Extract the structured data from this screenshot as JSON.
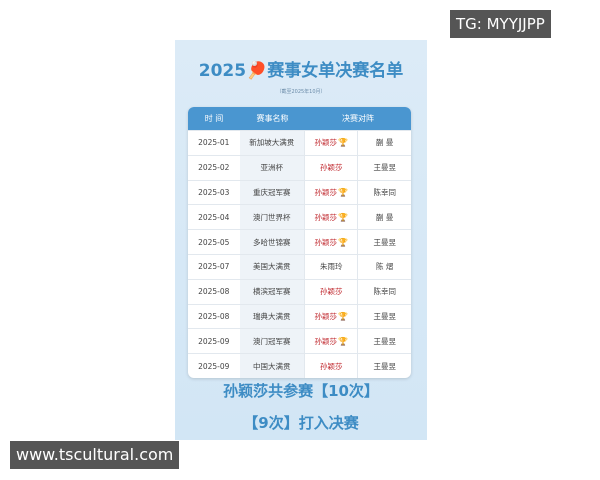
{
  "watermark_top": "TG: MYYJJPP",
  "watermark_bottom": "www.tscultural.com",
  "title_year": "2025",
  "title_text": "赛事女单决赛名单",
  "subtitle": "（截至2025年10月）",
  "headers": [
    "时 间",
    "赛事名称",
    "决赛对阵"
  ],
  "rows": [
    {
      "date": "2025-01",
      "event": "新加坡大满贯",
      "p1": "孙颖莎",
      "p2": "蒯 曼",
      "trophy": true,
      "red": true
    },
    {
      "date": "2025-02",
      "event": "亚洲杯",
      "p1": "孙颖莎",
      "p2": "王曼昱",
      "trophy": false,
      "red": true
    },
    {
      "date": "2025-03",
      "event": "重庆冠军赛",
      "p1": "孙颖莎",
      "p2": "陈幸同",
      "trophy": true,
      "red": true
    },
    {
      "date": "2025-04",
      "event": "澳门世界杯",
      "p1": "孙颖莎",
      "p2": "蒯 曼",
      "trophy": true,
      "red": true
    },
    {
      "date": "2025-05",
      "event": "多哈世锦赛",
      "p1": "孙颖莎",
      "p2": "王曼昱",
      "trophy": true,
      "red": true
    },
    {
      "date": "2025-07",
      "event": "美国大满贯",
      "p1": "朱雨玲",
      "p2": "陈 熠",
      "trophy": false,
      "red": false
    },
    {
      "date": "2025-08",
      "event": "横滨冠军赛",
      "p1": "孙颖莎",
      "p2": "陈幸同",
      "trophy": false,
      "red": true
    },
    {
      "date": "2025-08",
      "event": "瑞典大满贯",
      "p1": "孙颖莎",
      "p2": "王曼昱",
      "trophy": true,
      "red": true
    },
    {
      "date": "2025-09",
      "event": "澳门冠军赛",
      "p1": "孙颖莎",
      "p2": "王曼昱",
      "trophy": true,
      "red": true
    },
    {
      "date": "2025-09",
      "event": "中国大满贯",
      "p1": "孙颖莎",
      "p2": "王曼昱",
      "trophy": false,
      "red": true
    }
  ],
  "footer_line1": "孙颖莎共参赛【10次】",
  "footer_line2": "【9次】打入决赛",
  "icons": {
    "title": "ping-pong-paddle-icon",
    "winner": "trophy-icon"
  },
  "colors": {
    "accent": "#3d8cc4",
    "header": "#4a96d0",
    "winner": "#c0282e"
  }
}
